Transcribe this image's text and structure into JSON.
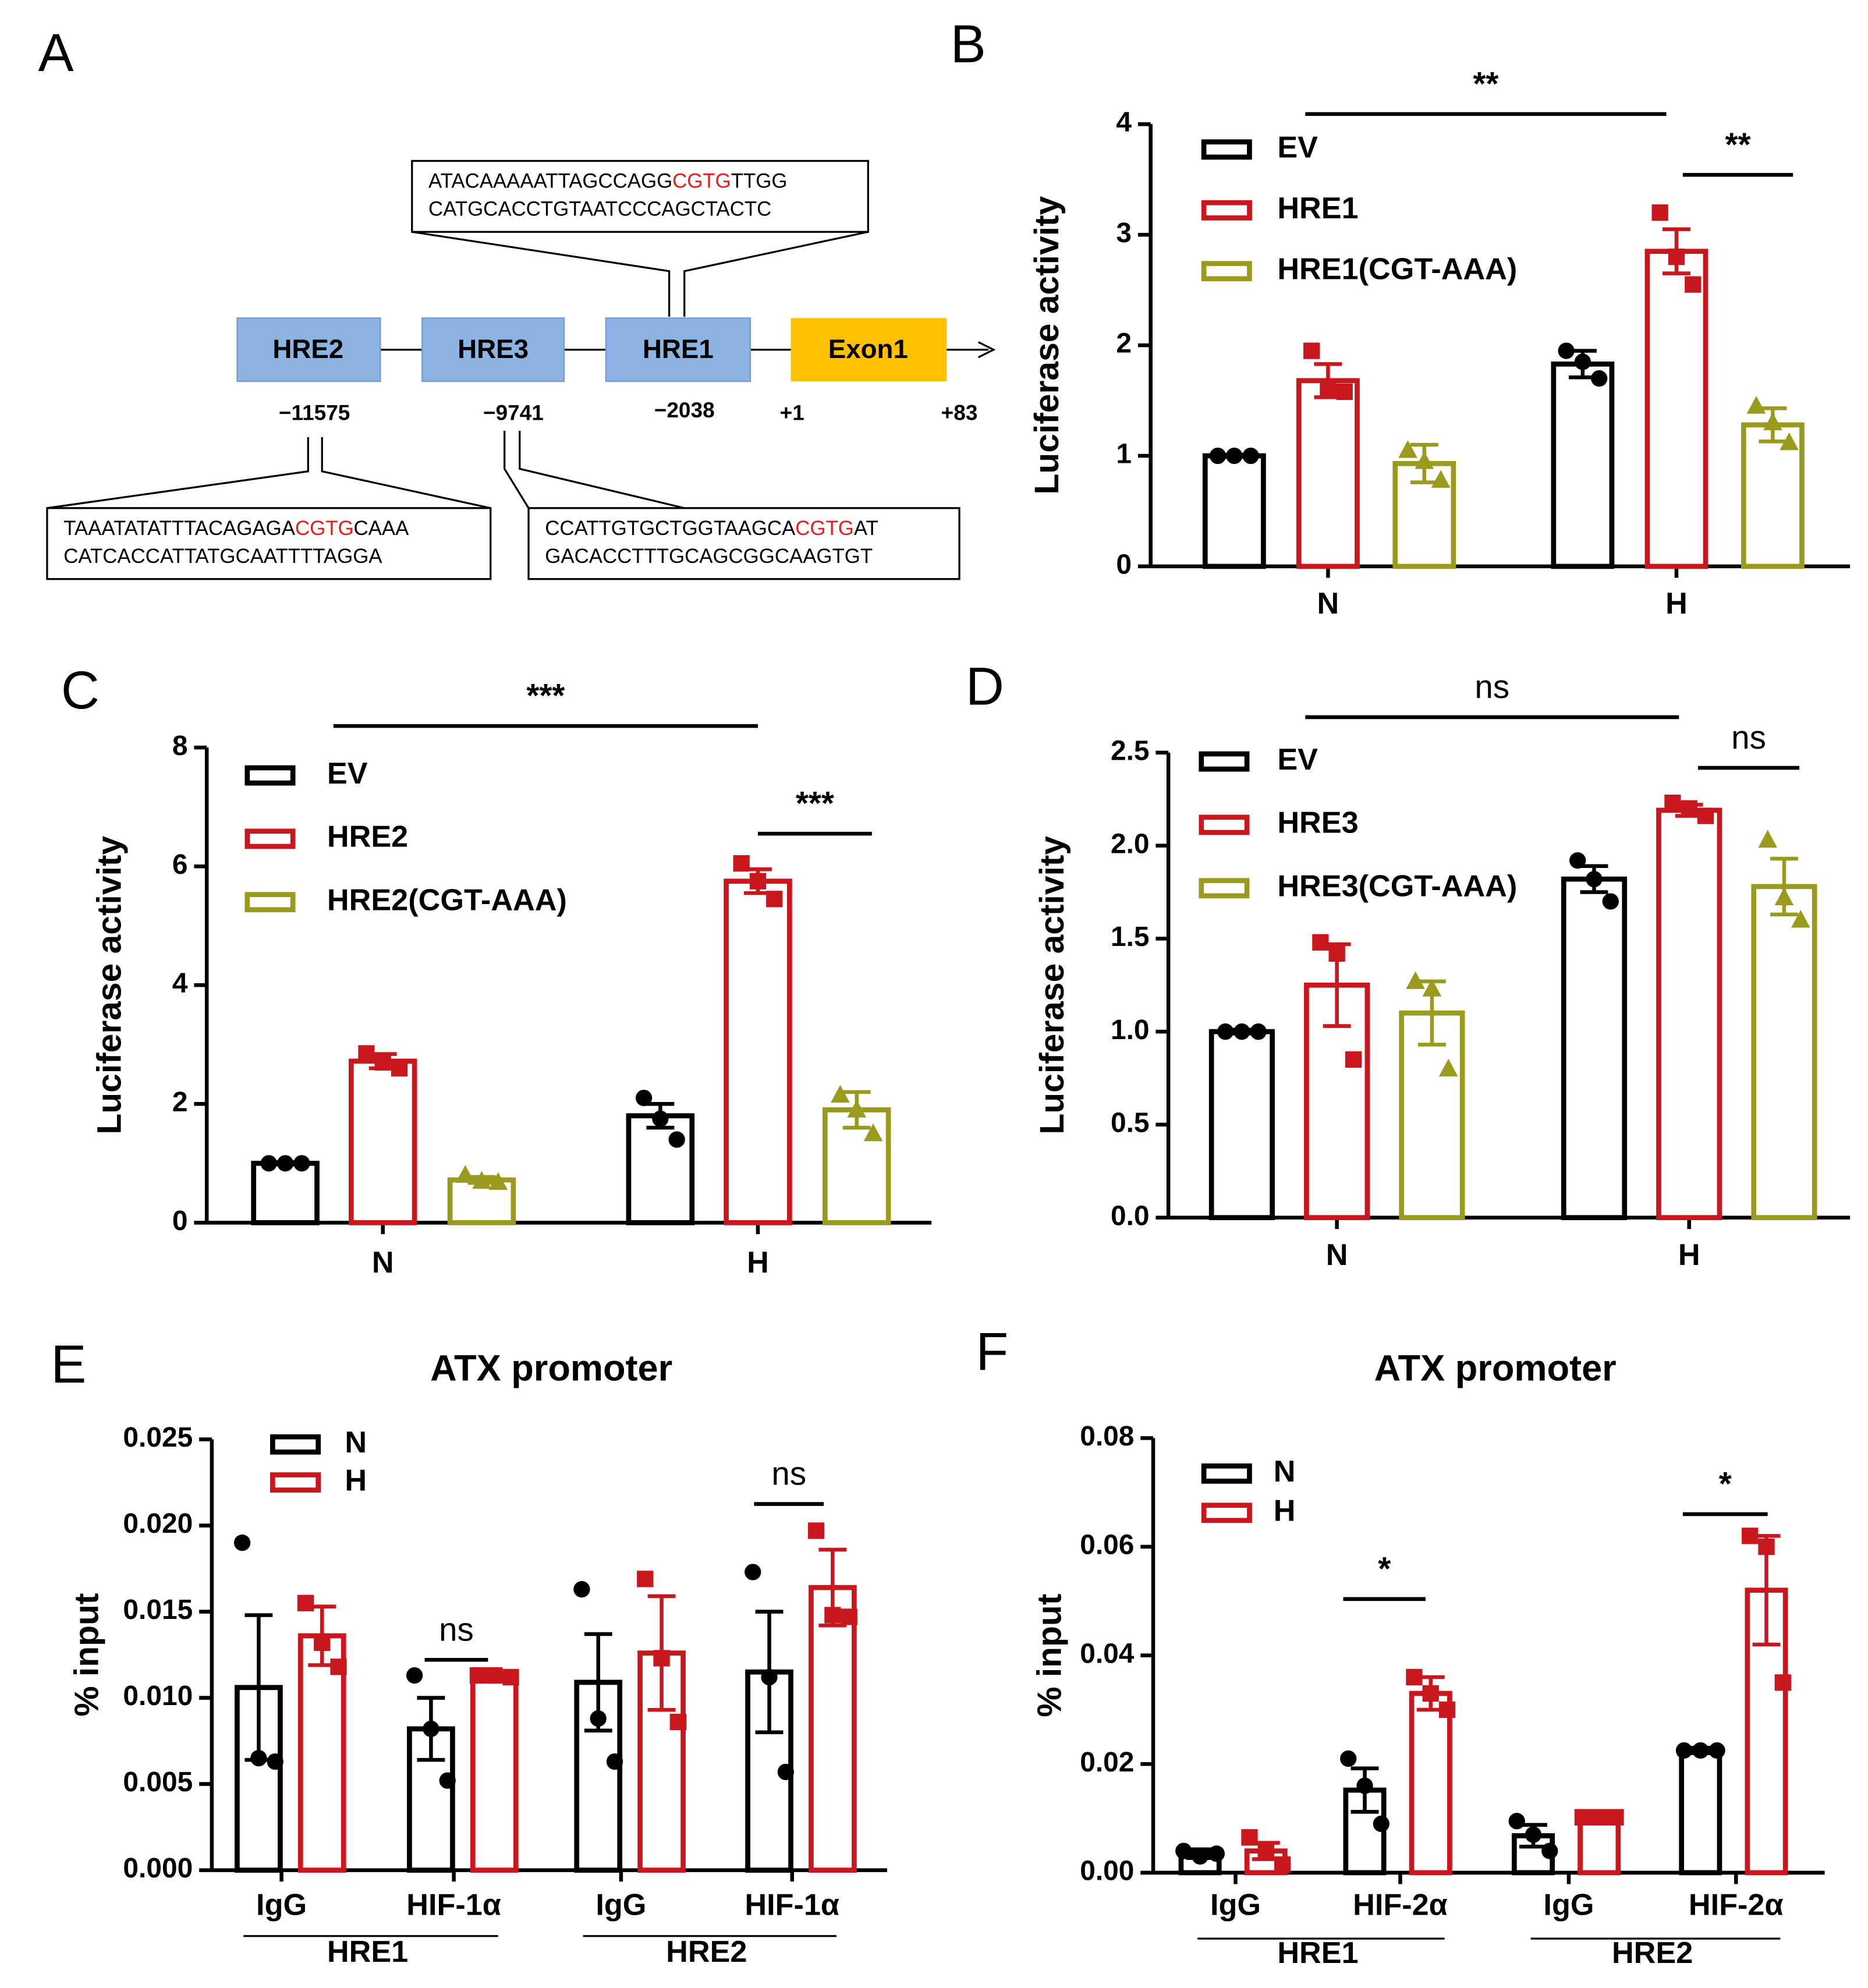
{
  "diagram": {
    "label": "A",
    "elements": [
      {
        "label": "HRE2",
        "position": "−11575"
      },
      {
        "label": "HRE3",
        "position": "−9741"
      },
      {
        "label": "HRE1",
        "position": "−2038"
      }
    ],
    "exon": {
      "label": "Exon1",
      "start": "+1",
      "end": "+83"
    },
    "sequences": [
      {
        "line1": [
          "ATACAAAAATTAGCCAGG",
          "CGTG",
          "TTGG"
        ],
        "line2": "CATGCACCTGTAATCCCAGCTACTC"
      },
      {
        "line1": [
          "TAAATATATTTACAGAGA",
          "CGTG",
          "CAAA"
        ],
        "line2": "CATCACCATTATGCAATTTTAGGA"
      },
      {
        "line1": [
          "CCATTGTGCTGGTAAGCA",
          "CGTG",
          "AT"
        ],
        "line2": "GACACCTTTGCAGCGGCAAGTGT"
      }
    ]
  },
  "chart_data": [
    {
      "type": "bar",
      "label": "B",
      "ylabel": "Luciferase activity",
      "categories": [
        "N",
        "H"
      ],
      "ylim": [
        0,
        4
      ],
      "yticks": [
        0,
        1,
        2,
        3,
        4
      ],
      "series": [
        {
          "name": "EV",
          "color": "#000000",
          "values": [
            1.0,
            1.83
          ],
          "errors": [
            0.01,
            0.12
          ],
          "points": [
            [
              1,
              1,
              1
            ],
            [
              1.95,
              1.85,
              1.7
            ]
          ]
        },
        {
          "name": "HRE1",
          "color": "#c8171e",
          "values": [
            1.68,
            2.85
          ],
          "errors": [
            0.15,
            0.2
          ],
          "points": [
            [
              1.95,
              1.62,
              1.58
            ],
            [
              3.2,
              2.8,
              2.55
            ]
          ]
        },
        {
          "name": "HRE1(CGT-AAA)",
          "color": "#9a9a1e",
          "values": [
            0.93,
            1.28
          ],
          "errors": [
            0.17,
            0.15
          ],
          "points": [
            [
              1.05,
              0.95,
              0.78
            ],
            [
              1.45,
              1.3,
              1.12
            ]
          ]
        }
      ],
      "annotations": [
        "**",
        "**"
      ]
    },
    {
      "type": "bar",
      "label": "C",
      "ylabel": "Luciferase activity",
      "categories": [
        "N",
        "H"
      ],
      "ylim": [
        0,
        8
      ],
      "yticks": [
        0,
        2,
        4,
        6,
        8
      ],
      "series": [
        {
          "name": "EV",
          "color": "#000000",
          "values": [
            1.0,
            1.8
          ],
          "errors": [
            0.02,
            0.2
          ],
          "points": [
            [
              1,
              1,
              1
            ],
            [
              2.1,
              1.75,
              1.4
            ]
          ]
        },
        {
          "name": "HRE2",
          "color": "#c8171e",
          "values": [
            2.72,
            5.75
          ],
          "errors": [
            0.12,
            0.2
          ],
          "points": [
            [
              2.85,
              2.7,
              2.6
            ],
            [
              6.05,
              5.75,
              5.45
            ]
          ]
        },
        {
          "name": "HRE2(CGT-AAA)",
          "color": "#9a9a1e",
          "values": [
            0.72,
            1.9
          ],
          "errors": [
            0.05,
            0.3
          ],
          "points": [
            [
              0.8,
              0.7,
              0.68
            ],
            [
              2.15,
              1.9,
              1.5
            ]
          ]
        }
      ],
      "annotations": [
        "***",
        "***"
      ]
    },
    {
      "type": "bar",
      "label": "D",
      "ylabel": "Luciferase activity",
      "categories": [
        "N",
        "H"
      ],
      "ylim": [
        0,
        2.5
      ],
      "yticks": [
        {
          "value": 0,
          "label": "0.0"
        },
        0.5,
        {
          "value": 1,
          "label": "1.0"
        },
        1.5,
        {
          "value": 2,
          "label": "2.0"
        },
        2.5
      ],
      "series": [
        {
          "name": "EV",
          "color": "#000000",
          "values": [
            1.0,
            1.82
          ],
          "errors": [
            0.01,
            0.07
          ],
          "points": [
            [
              1,
              1,
              1
            ],
            [
              1.92,
              1.82,
              1.7
            ]
          ]
        },
        {
          "name": "HRE3",
          "color": "#c8171e",
          "values": [
            1.25,
            2.19
          ],
          "errors": [
            0.22,
            0.03
          ],
          "points": [
            [
              1.48,
              1.42,
              0.85
            ],
            [
              2.23,
              2.2,
              2.16
            ]
          ]
        },
        {
          "name": "HRE3(CGT-AAA)",
          "color": "#9a9a1e",
          "values": [
            1.1,
            1.78
          ],
          "errors": [
            0.17,
            0.15
          ],
          "points": [
            [
              1.27,
              1.23,
              0.8
            ],
            [
              2.03,
              1.72,
              1.6
            ]
          ]
        }
      ],
      "annotations": [
        "ns",
        "ns"
      ]
    },
    {
      "type": "bar",
      "label": "E",
      "title": "ATX promoter",
      "ylabel": "% input",
      "categories": [
        "IgG",
        "HIF-1α",
        "IgG",
        "HIF-1α"
      ],
      "groups": [
        "HRE1",
        "HRE2"
      ],
      "ylim": [
        0,
        0.025
      ],
      "yticks": [
        {
          "value": 0,
          "label": "0.000"
        },
        {
          "value": 0.005,
          "label": "0.005"
        },
        {
          "value": 0.01,
          "label": "0.010"
        },
        {
          "value": 0.015,
          "label": "0.015"
        },
        {
          "value": 0.02,
          "label": "0.020"
        },
        {
          "value": 0.025,
          "label": "0.025"
        }
      ],
      "series": [
        {
          "name": "N",
          "color": "#000000",
          "values": [
            0.0106,
            0.0082,
            0.0109,
            0.0115
          ],
          "errors": [
            0.0042,
            0.0018,
            0.0028,
            0.0035
          ],
          "points": [
            [
              0.019,
              0.0065,
              0.0063
            ],
            [
              0.0113,
              0.0082,
              0.0052
            ],
            [
              0.0163,
              0.0088,
              0.0063
            ],
            [
              0.0173,
              0.0112,
              0.0057
            ]
          ]
        },
        {
          "name": "H",
          "color": "#c8171e",
          "values": [
            0.0136,
            0.0112,
            0.0126,
            0.0164
          ],
          "errors": [
            0.0017,
            0.0002,
            0.0033,
            0.0022
          ],
          "points": [
            [
              0.0155,
              0.0132,
              0.0118
            ],
            [
              0.0113,
              0.0113,
              0.0112
            ],
            [
              0.0169,
              0.0123,
              0.0086
            ],
            [
              0.0197,
              0.0148,
              0.0147
            ]
          ]
        }
      ],
      "annotations": [
        "ns",
        "ns"
      ]
    },
    {
      "type": "bar",
      "label": "F",
      "title": "ATX promoter",
      "ylabel": "% input",
      "categories": [
        "IgG",
        "HIF-2α",
        "IgG",
        "HIF-2α"
      ],
      "groups": [
        "HRE1",
        "HRE2"
      ],
      "ylim": [
        0,
        0.08
      ],
      "yticks": [
        {
          "value": 0,
          "label": "0.00"
        },
        {
          "value": 0.02,
          "label": "0.02"
        },
        {
          "value": 0.04,
          "label": "0.04"
        },
        {
          "value": 0.06,
          "label": "0.06"
        },
        {
          "value": 0.08,
          "label": "0.08"
        }
      ],
      "series": [
        {
          "name": "N",
          "color": "#000000",
          "values": [
            0.0035,
            0.0152,
            0.0068,
            0.0225
          ],
          "errors": [
            0.0008,
            0.004,
            0.002,
            0.0005
          ],
          "points": [
            [
              0.004,
              0.003,
              0.0035
            ],
            [
              0.021,
              0.016,
              0.009
            ],
            [
              0.0095,
              0.007,
              0.004
            ],
            [
              0.0225,
              0.0225,
              0.0225
            ]
          ]
        },
        {
          "name": "H",
          "color": "#c8171e",
          "values": [
            0.004,
            0.033,
            0.0102,
            0.052
          ],
          "errors": [
            0.0015,
            0.003,
            0.0008,
            0.01
          ],
          "points": [
            [
              0.0065,
              0.004,
              0.0015
            ],
            [
              0.036,
              0.033,
              0.03
            ],
            [
              0.0102,
              0.0102,
              0.0102
            ],
            [
              0.062,
              0.06,
              0.035
            ]
          ]
        }
      ],
      "annotations": [
        "*",
        "*"
      ]
    }
  ]
}
